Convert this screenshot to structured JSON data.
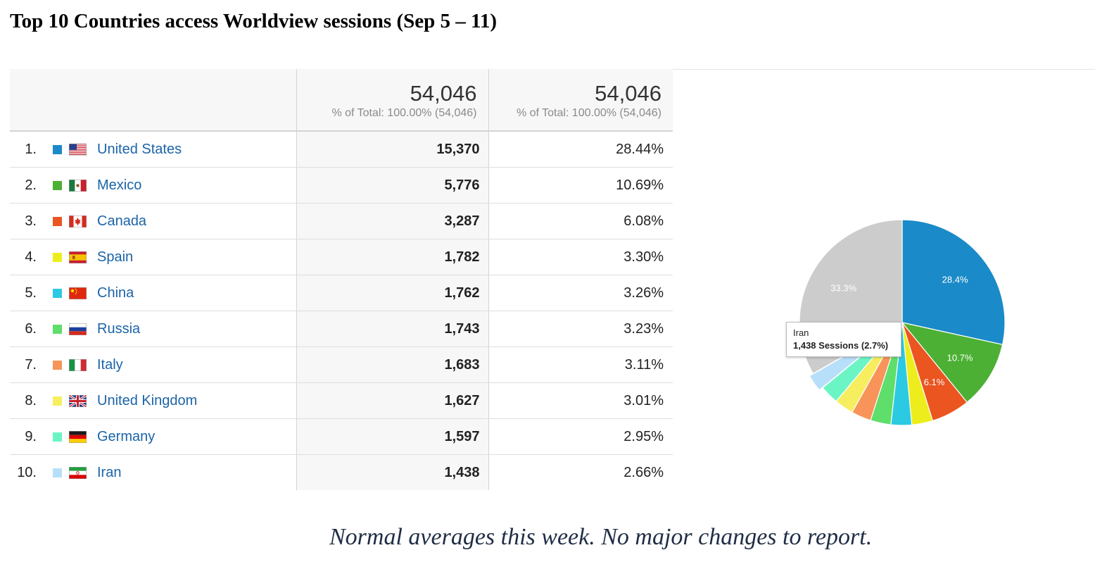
{
  "page": {
    "title": "Top 10 Countries access Worldview sessions (Sep 5 – 11)",
    "footer_note": "Normal averages this week.  No major changes to report."
  },
  "table": {
    "columns": [
      {
        "total": "54,046",
        "subtitle": "% of Total: 100.00% (54,046)"
      },
      {
        "total": "54,046",
        "subtitle": "% of Total: 100.00% (54,046)"
      }
    ],
    "rows": [
      {
        "rank": "1.",
        "country": "United States",
        "flag": "us-flag-icon",
        "color": "#1a8ac8",
        "sessions": "15,370",
        "percent": "28.44%"
      },
      {
        "rank": "2.",
        "country": "Mexico",
        "flag": "mx-flag-icon",
        "color": "#4cb034",
        "sessions": "5,776",
        "percent": "10.69%"
      },
      {
        "rank": "3.",
        "country": "Canada",
        "flag": "ca-flag-icon",
        "color": "#ea5520",
        "sessions": "3,287",
        "percent": "6.08%"
      },
      {
        "rank": "4.",
        "country": "Spain",
        "flag": "es-flag-icon",
        "color": "#eded1d",
        "sessions": "1,782",
        "percent": "3.30%"
      },
      {
        "rank": "5.",
        "country": "China",
        "flag": "cn-flag-icon",
        "color": "#2ccae2",
        "sessions": "1,762",
        "percent": "3.26%"
      },
      {
        "rank": "6.",
        "country": "Russia",
        "flag": "ru-flag-icon",
        "color": "#5fde6b",
        "sessions": "1,743",
        "percent": "3.23%"
      },
      {
        "rank": "7.",
        "country": "Italy",
        "flag": "it-flag-icon",
        "color": "#f89459",
        "sessions": "1,683",
        "percent": "3.11%"
      },
      {
        "rank": "8.",
        "country": "United Kingdom",
        "flag": "gb-flag-icon",
        "color": "#f7ee5f",
        "sessions": "1,627",
        "percent": "3.01%"
      },
      {
        "rank": "9.",
        "country": "Germany",
        "flag": "de-flag-icon",
        "color": "#6cf5c4",
        "sessions": "1,597",
        "percent": "2.95%"
      },
      {
        "rank": "10.",
        "country": "Iran",
        "flag": "ir-flag-icon",
        "color": "#b8dff9",
        "sessions": "1,438",
        "percent": "2.66%"
      }
    ]
  },
  "chart_data": {
    "type": "pie",
    "categories": [
      "United States",
      "Mexico",
      "Canada",
      "Spain",
      "China",
      "Russia",
      "Italy",
      "United Kingdom",
      "Germany",
      "Iran",
      ""
    ],
    "values": [
      15370,
      5776,
      3287,
      1782,
      1762,
      1743,
      1683,
      1627,
      1597,
      1438,
      17981
    ],
    "colors": [
      "#1a8ac8",
      "#4cb034",
      "#ea5520",
      "#eded1d",
      "#2ccae2",
      "#5fde6b",
      "#f89459",
      "#f7ee5f",
      "#6cf5c4",
      "#b8dff9",
      "#cccccc"
    ],
    "slice_labels": [
      {
        "index": 0,
        "text": "28.4%"
      },
      {
        "index": 1,
        "text": "10.7%"
      },
      {
        "index": 2,
        "text": "6.1%"
      },
      {
        "index": 10,
        "text": "33.3%"
      }
    ],
    "highlighted_index": 9,
    "tooltip": {
      "name": "Iran",
      "value": "1,438 Sessions (2.7%)"
    }
  }
}
